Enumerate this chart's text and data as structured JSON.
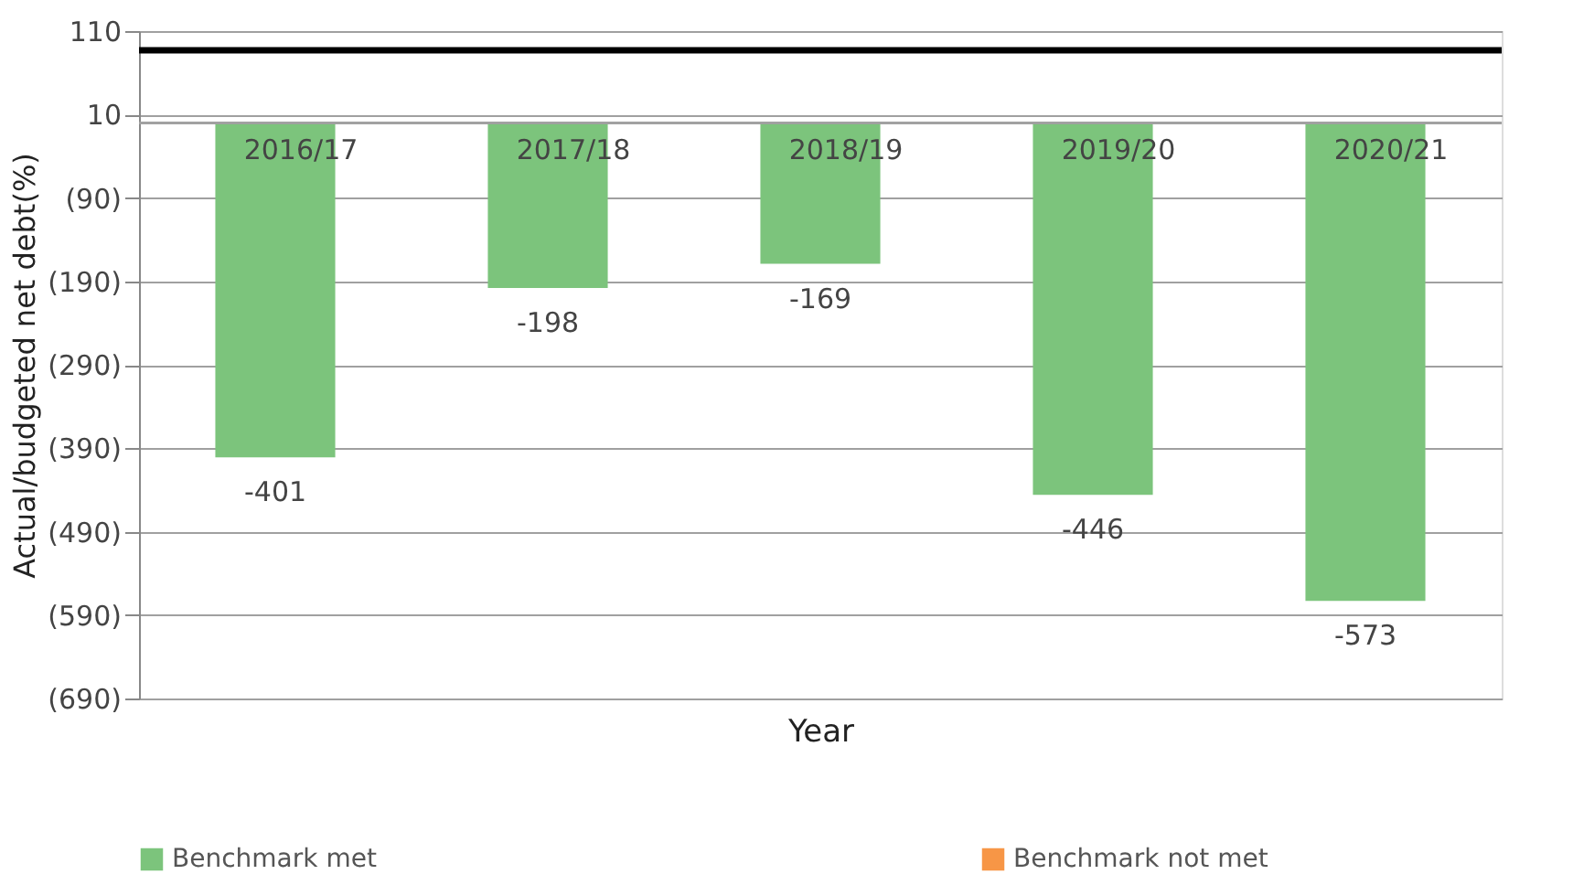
{
  "chart_data": {
    "type": "bar",
    "xlabel": "Year",
    "ylabel": "Actual/budgeted net debt(%)",
    "categories": [
      "2016/17",
      "2017/18",
      "2018/19",
      "2019/20",
      "2020/21"
    ],
    "series": [
      {
        "name": "Benchmark met",
        "color": "#7cc47c",
        "values": [
          -401,
          -198,
          -169,
          -446,
          -573
        ]
      },
      {
        "name": "Benchmark not met",
        "color": "#f79646",
        "values": [
          null,
          null,
          null,
          null,
          null
        ]
      }
    ],
    "data_labels": true,
    "ylim": [
      -690,
      110
    ],
    "yticks": [
      110,
      10,
      {
        "value": -90,
        "label": "(90)"
      },
      {
        "value": -190,
        "label": "(190)"
      },
      {
        "value": -290,
        "label": "(290)"
      },
      {
        "value": -390,
        "label": "(390)"
      },
      {
        "value": -490,
        "label": "(490)"
      },
      {
        "value": -590,
        "label": "(590)"
      },
      {
        "value": -690,
        "label": "(690)"
      }
    ],
    "ref_lines": [
      {
        "axis": "y",
        "value": 87,
        "color": "#000000"
      }
    ],
    "grid": "y",
    "legend": "bottom"
  }
}
